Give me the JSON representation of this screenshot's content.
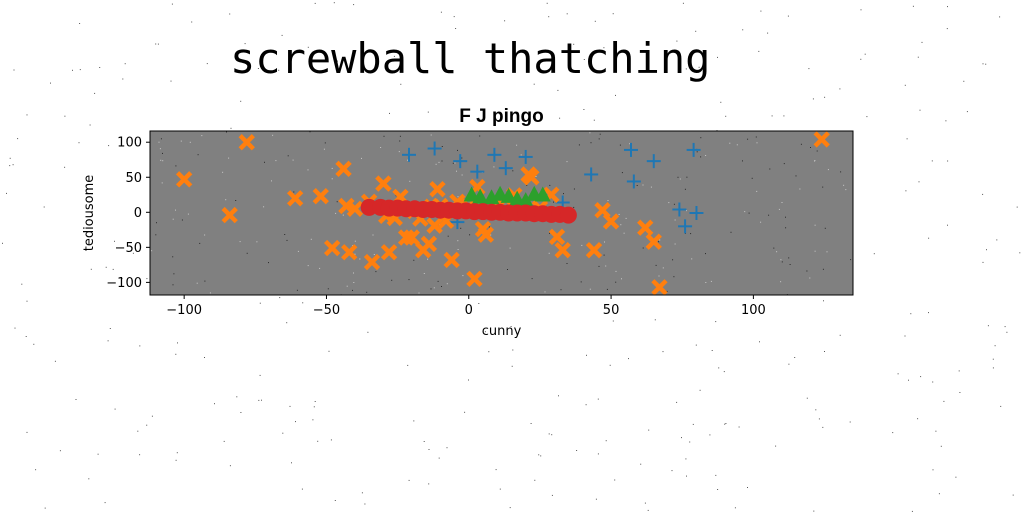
{
  "figure": {
    "suptitle": "screwball thatching"
  },
  "chart_data": {
    "type": "scatter",
    "title": "F J pingo",
    "xlabel": "cunny",
    "ylabel": "tediousome",
    "xlim": [
      -112,
      135
    ],
    "ylim": [
      -118,
      116
    ],
    "xticks": [
      -100,
      -50,
      0,
      50,
      100
    ],
    "yticks": [
      -100,
      -50,
      0,
      50,
      100
    ],
    "xtick_labels": [
      "−100",
      "−50",
      "0",
      "50",
      "100"
    ],
    "ytick_labels": [
      "−100",
      "−50",
      "0",
      "50",
      "100"
    ],
    "grid": false,
    "legend": "none",
    "plot_background": "#808080",
    "series": [
      {
        "marker": "plus",
        "color": "#1f77b4",
        "points": [
          [
            -21,
            82
          ],
          [
            -12,
            91
          ],
          [
            -3,
            73
          ],
          [
            3,
            58
          ],
          [
            9,
            82
          ],
          [
            13,
            63
          ],
          [
            20,
            79
          ],
          [
            33,
            14
          ],
          [
            43,
            54
          ],
          [
            57,
            89
          ],
          [
            58,
            44
          ],
          [
            65,
            73
          ],
          [
            74,
            4
          ],
          [
            76,
            -20
          ],
          [
            79,
            89
          ],
          [
            80,
            -1
          ],
          [
            -4,
            -14
          ]
        ]
      },
      {
        "marker": "x",
        "color": "#ff7f0e",
        "points": [
          [
            -100,
            47
          ],
          [
            -84,
            -4
          ],
          [
            -78,
            100
          ],
          [
            -61,
            20
          ],
          [
            -52,
            23
          ],
          [
            -48,
            -51
          ],
          [
            -44,
            62
          ],
          [
            -43,
            9
          ],
          [
            -42,
            -57
          ],
          [
            -40,
            5
          ],
          [
            -35,
            15
          ],
          [
            -34,
            -71
          ],
          [
            -30,
            41
          ],
          [
            -29,
            -5
          ],
          [
            -28,
            -57
          ],
          [
            -26,
            -8
          ],
          [
            -24,
            22
          ],
          [
            -23,
            4
          ],
          [
            -22,
            -36
          ],
          [
            -20,
            -36
          ],
          [
            -19,
            2
          ],
          [
            -17,
            -9
          ],
          [
            -16,
            -54
          ],
          [
            -14,
            -45
          ],
          [
            -13,
            8
          ],
          [
            -12,
            -19
          ],
          [
            -11,
            33
          ],
          [
            -10,
            9
          ],
          [
            -8,
            -12
          ],
          [
            -6,
            -68
          ],
          [
            -4,
            15
          ],
          [
            -2,
            2
          ],
          [
            0,
            8
          ],
          [
            2,
            -95
          ],
          [
            3,
            36
          ],
          [
            5,
            -24
          ],
          [
            6,
            -32
          ],
          [
            9,
            8
          ],
          [
            13,
            19
          ],
          [
            16,
            24
          ],
          [
            18,
            10
          ],
          [
            21,
            54
          ],
          [
            22,
            50
          ],
          [
            25,
            6
          ],
          [
            29,
            25
          ],
          [
            31,
            -35
          ],
          [
            33,
            -54
          ],
          [
            44,
            -54
          ],
          [
            47,
            3
          ],
          [
            50,
            -13
          ],
          [
            62,
            -22
          ],
          [
            65,
            -42
          ],
          [
            67,
            -107
          ],
          [
            124,
            104
          ]
        ]
      },
      {
        "marker": "triangle",
        "color": "#2ca02c",
        "points": [
          [
            1,
            24
          ],
          [
            4,
            21
          ],
          [
            8,
            20
          ],
          [
            11,
            25
          ],
          [
            14,
            22
          ],
          [
            17,
            18
          ],
          [
            20,
            16
          ],
          [
            23,
            25
          ],
          [
            26,
            24
          ]
        ]
      },
      {
        "marker": "circle",
        "color": "#d62728",
        "points": [
          [
            -35,
            7
          ],
          [
            -31,
            7
          ],
          [
            -28,
            6
          ],
          [
            -25,
            6
          ],
          [
            -22,
            5
          ],
          [
            -19,
            5
          ],
          [
            -16,
            4
          ],
          [
            -13,
            4
          ],
          [
            -10,
            3
          ],
          [
            -7,
            3
          ],
          [
            -4,
            2
          ],
          [
            -1,
            2
          ],
          [
            2,
            1
          ],
          [
            5,
            1
          ],
          [
            8,
            0
          ],
          [
            11,
            0
          ],
          [
            14,
            -1
          ],
          [
            17,
            -1
          ],
          [
            20,
            -1
          ],
          [
            23,
            -2
          ],
          [
            26,
            -2
          ],
          [
            29,
            -3
          ],
          [
            32,
            -3
          ],
          [
            35,
            -4
          ]
        ]
      }
    ]
  }
}
